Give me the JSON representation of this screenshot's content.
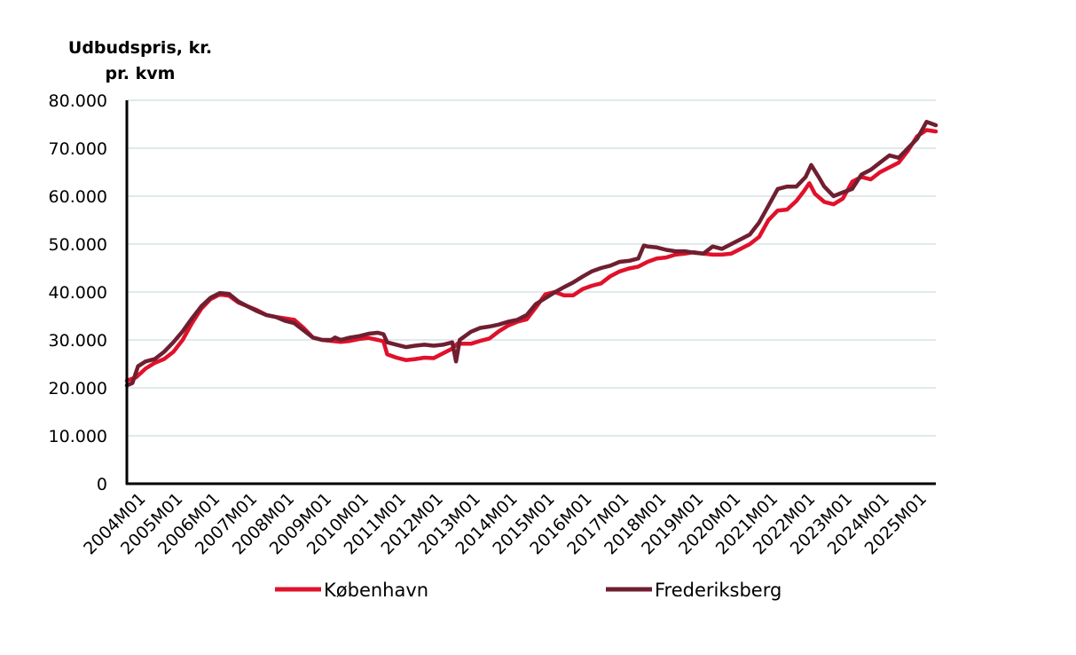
{
  "chart_data": {
    "type": "line",
    "ylabel_lines": [
      "Udbudspris, kr.",
      "pr. kvm"
    ],
    "y_ticks": [
      "0",
      "10.000",
      "20.000",
      "30.000",
      "40.000",
      "50.000",
      "60.000",
      "70.000",
      "80.000"
    ],
    "ylim": [
      0,
      80000
    ],
    "grid": true,
    "legend_position": "bottom",
    "x_range": [
      2004.0,
      2025.75
    ],
    "categories": [
      "2004M01",
      "2005M01",
      "2006M01",
      "2007M01",
      "2008M01",
      "2009M01",
      "2010M01",
      "2011M01",
      "2012M01",
      "2013M01",
      "2014M01",
      "2015M01",
      "2016M01",
      "2017M01",
      "2018M01",
      "2019M01",
      "2020M01",
      "2021M01",
      "2022M01",
      "2023M01",
      "2024M01",
      "2025M01"
    ],
    "series": [
      {
        "name": "København",
        "color": "#e0112b",
        "points": [
          [
            2004.0,
            21500
          ],
          [
            2004.25,
            22200
          ],
          [
            2004.5,
            24000
          ],
          [
            2004.75,
            25200
          ],
          [
            2005.0,
            26000
          ],
          [
            2005.25,
            27500
          ],
          [
            2005.5,
            30000
          ],
          [
            2005.75,
            33500
          ],
          [
            2006.0,
            36500
          ],
          [
            2006.25,
            38500
          ],
          [
            2006.5,
            39500
          ],
          [
            2006.75,
            39200
          ],
          [
            2007.0,
            37800
          ],
          [
            2007.25,
            37000
          ],
          [
            2007.5,
            36200
          ],
          [
            2007.75,
            35200
          ],
          [
            2008.0,
            34800
          ],
          [
            2008.25,
            34500
          ],
          [
            2008.5,
            34200
          ],
          [
            2008.75,
            32500
          ],
          [
            2009.0,
            30500
          ],
          [
            2009.25,
            30000
          ],
          [
            2009.5,
            29800
          ],
          [
            2009.75,
            29600
          ],
          [
            2010.0,
            29800
          ],
          [
            2010.25,
            30200
          ],
          [
            2010.5,
            30400
          ],
          [
            2010.75,
            30000
          ],
          [
            2010.9,
            29700
          ],
          [
            2011.0,
            27000
          ],
          [
            2011.25,
            26300
          ],
          [
            2011.5,
            25800
          ],
          [
            2011.75,
            26000
          ],
          [
            2012.0,
            26300
          ],
          [
            2012.25,
            26200
          ],
          [
            2012.5,
            27200
          ],
          [
            2012.75,
            28200
          ],
          [
            2012.9,
            29300
          ],
          [
            2013.0,
            29200
          ],
          [
            2013.25,
            29200
          ],
          [
            2013.5,
            29800
          ],
          [
            2013.75,
            30300
          ],
          [
            2014.0,
            31800
          ],
          [
            2014.25,
            33000
          ],
          [
            2014.5,
            33800
          ],
          [
            2014.75,
            34300
          ],
          [
            2015.0,
            36800
          ],
          [
            2015.25,
            39500
          ],
          [
            2015.5,
            40000
          ],
          [
            2015.75,
            39300
          ],
          [
            2016.0,
            39300
          ],
          [
            2016.25,
            40600
          ],
          [
            2016.5,
            41300
          ],
          [
            2016.75,
            41800
          ],
          [
            2017.0,
            43300
          ],
          [
            2017.25,
            44300
          ],
          [
            2017.5,
            44900
          ],
          [
            2017.75,
            45300
          ],
          [
            2018.0,
            46300
          ],
          [
            2018.25,
            47000
          ],
          [
            2018.5,
            47200
          ],
          [
            2018.75,
            47800
          ],
          [
            2019.0,
            48000
          ],
          [
            2019.25,
            48300
          ],
          [
            2019.5,
            48000
          ],
          [
            2019.75,
            47800
          ],
          [
            2020.0,
            47800
          ],
          [
            2020.25,
            48000
          ],
          [
            2020.5,
            49000
          ],
          [
            2020.75,
            50000
          ],
          [
            2021.0,
            51500
          ],
          [
            2021.25,
            55000
          ],
          [
            2021.5,
            57000
          ],
          [
            2021.75,
            57200
          ],
          [
            2022.0,
            59000
          ],
          [
            2022.2,
            61000
          ],
          [
            2022.35,
            62700
          ],
          [
            2022.5,
            60500
          ],
          [
            2022.75,
            58800
          ],
          [
            2023.0,
            58300
          ],
          [
            2023.25,
            59500
          ],
          [
            2023.5,
            63000
          ],
          [
            2023.75,
            64000
          ],
          [
            2024.0,
            63500
          ],
          [
            2024.25,
            65000
          ],
          [
            2024.5,
            66000
          ],
          [
            2024.75,
            67000
          ],
          [
            2025.0,
            69500
          ],
          [
            2025.25,
            72500
          ],
          [
            2025.5,
            73800
          ],
          [
            2025.75,
            73500
          ]
        ]
      },
      {
        "name": "Frederiksberg",
        "color": "#6e1f30",
        "points": [
          [
            2004.0,
            20500
          ],
          [
            2004.15,
            21000
          ],
          [
            2004.3,
            24500
          ],
          [
            2004.5,
            25500
          ],
          [
            2004.75,
            26000
          ],
          [
            2005.0,
            27500
          ],
          [
            2005.25,
            29500
          ],
          [
            2005.5,
            31800
          ],
          [
            2005.75,
            34500
          ],
          [
            2006.0,
            37000
          ],
          [
            2006.25,
            38800
          ],
          [
            2006.5,
            39800
          ],
          [
            2006.75,
            39600
          ],
          [
            2007.0,
            38000
          ],
          [
            2007.25,
            37000
          ],
          [
            2007.5,
            36000
          ],
          [
            2007.75,
            35200
          ],
          [
            2008.0,
            34800
          ],
          [
            2008.25,
            34000
          ],
          [
            2008.5,
            33500
          ],
          [
            2008.75,
            32000
          ],
          [
            2009.0,
            30500
          ],
          [
            2009.25,
            30000
          ],
          [
            2009.5,
            30000
          ],
          [
            2009.6,
            30500
          ],
          [
            2009.75,
            30000
          ],
          [
            2010.0,
            30500
          ],
          [
            2010.25,
            30800
          ],
          [
            2010.5,
            31300
          ],
          [
            2010.75,
            31500
          ],
          [
            2010.9,
            31200
          ],
          [
            2011.0,
            29500
          ],
          [
            2011.25,
            29000
          ],
          [
            2011.5,
            28500
          ],
          [
            2011.75,
            28800
          ],
          [
            2012.0,
            29000
          ],
          [
            2012.25,
            28800
          ],
          [
            2012.5,
            29000
          ],
          [
            2012.75,
            29500
          ],
          [
            2012.85,
            25500
          ],
          [
            2012.95,
            30000
          ],
          [
            2013.25,
            31700
          ],
          [
            2013.5,
            32500
          ],
          [
            2013.75,
            32800
          ],
          [
            2014.0,
            33200
          ],
          [
            2014.25,
            33800
          ],
          [
            2014.5,
            34200
          ],
          [
            2014.75,
            35200
          ],
          [
            2015.0,
            37500
          ],
          [
            2015.25,
            38700
          ],
          [
            2015.5,
            39900
          ],
          [
            2015.75,
            41000
          ],
          [
            2016.0,
            42000
          ],
          [
            2016.25,
            43200
          ],
          [
            2016.5,
            44300
          ],
          [
            2016.75,
            45000
          ],
          [
            2017.0,
            45500
          ],
          [
            2017.25,
            46300
          ],
          [
            2017.5,
            46500
          ],
          [
            2017.75,
            47000
          ],
          [
            2017.9,
            49700
          ],
          [
            2018.0,
            49500
          ],
          [
            2018.25,
            49300
          ],
          [
            2018.5,
            48800
          ],
          [
            2018.75,
            48500
          ],
          [
            2019.0,
            48500
          ],
          [
            2019.25,
            48200
          ],
          [
            2019.5,
            48000
          ],
          [
            2019.75,
            49500
          ],
          [
            2020.0,
            49000
          ],
          [
            2020.25,
            50000
          ],
          [
            2020.5,
            51000
          ],
          [
            2020.75,
            52000
          ],
          [
            2021.0,
            54500
          ],
          [
            2021.25,
            58000
          ],
          [
            2021.5,
            61500
          ],
          [
            2021.75,
            62000
          ],
          [
            2022.0,
            62000
          ],
          [
            2022.25,
            64000
          ],
          [
            2022.4,
            66500
          ],
          [
            2022.6,
            64000
          ],
          [
            2022.75,
            62000
          ],
          [
            2023.0,
            60000
          ],
          [
            2023.25,
            60800
          ],
          [
            2023.5,
            61500
          ],
          [
            2023.75,
            64500
          ],
          [
            2024.0,
            65500
          ],
          [
            2024.25,
            67000
          ],
          [
            2024.5,
            68500
          ],
          [
            2024.75,
            68000
          ],
          [
            2025.0,
            70000
          ],
          [
            2025.25,
            72000
          ],
          [
            2025.5,
            75500
          ],
          [
            2025.75,
            74800
          ]
        ]
      }
    ]
  }
}
